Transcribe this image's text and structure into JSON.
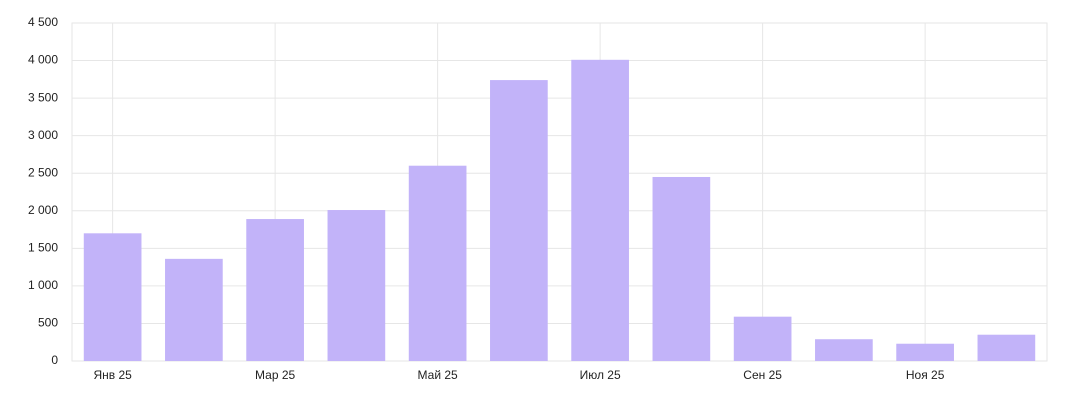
{
  "chart_data": {
    "type": "bar",
    "categories": [
      "Янв 25",
      null,
      "Мар 25",
      null,
      "Май 25",
      null,
      "Июл 25",
      null,
      "Сен 25",
      null,
      "Ноя 25",
      null
    ],
    "values": [
      1700,
      1360,
      1890,
      2010,
      2600,
      3740,
      4010,
      2450,
      590,
      290,
      230,
      350
    ],
    "color": "#c2b3f9",
    "ylim": [
      0,
      4500
    ],
    "yticks": [
      0,
      500,
      {
        "value": 1000,
        "label": "1 000"
      },
      {
        "value": 1500,
        "label": "1 500"
      },
      {
        "value": 2000,
        "label": "2 000"
      },
      {
        "value": 2500,
        "label": "2 500"
      },
      {
        "value": 3000,
        "label": "3 000"
      },
      {
        "value": 3500,
        "label": "3 500"
      },
      {
        "value": 4000,
        "label": "4 000"
      },
      {
        "value": 4500,
        "label": "4 500"
      }
    ],
    "grid": true
  }
}
